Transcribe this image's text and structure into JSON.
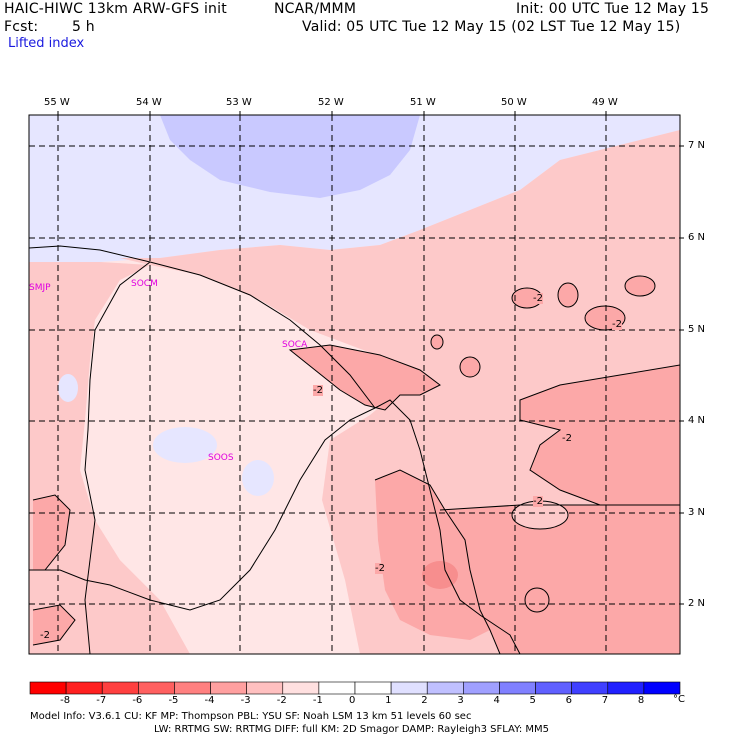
{
  "header": {
    "title": "HAIC-HIWC 13km ARW-GFS init",
    "org": "NCAR/MMM",
    "init": "Init: 00 UTC Tue 12 May 15",
    "fcst_label": "Fcst:",
    "fcst_value": "5 h",
    "valid": "Valid: 05 UTC Tue 12 May 15 (02 LST Tue 12 May 15)",
    "field": "Lifted index"
  },
  "axes": {
    "longitudes": [
      "55 W",
      "54 W",
      "53 W",
      "52 W",
      "51 W",
      "50 W",
      "49 W"
    ],
    "latitudes": [
      "7 N",
      "6 N",
      "5 N",
      "4 N",
      "3 N",
      "2 N"
    ]
  },
  "stations": [
    "SMJP",
    "SOCM",
    "SOCA",
    "SOOS"
  ],
  "contour_labels": [
    "-2",
    "-2",
    "-2",
    "-2",
    "-2",
    "-2",
    "-2"
  ],
  "colorbar": {
    "unit": "°C",
    "ticks": [
      "-8",
      "-7",
      "-6",
      "-5",
      "-4",
      "-3",
      "-2",
      "-1",
      "0",
      "1",
      "2",
      "3",
      "4",
      "5",
      "6",
      "7",
      "8"
    ],
    "colors": [
      "#ff0000",
      "#ff2020",
      "#ff4040",
      "#ff6060",
      "#ff8080",
      "#ffa0a0",
      "#ffc0c0",
      "#ffe0e0",
      "#ffffff",
      "#e0e0ff",
      "#c0c0ff",
      "#a0a0ff",
      "#8080ff",
      "#6060ff",
      "#4040ff",
      "#2020ff",
      "#0000ff"
    ]
  },
  "fills": {
    "lt_m2": "#fca8a8",
    "m2_m1": "#fdc9c9",
    "m1_0": "#ffe6e6",
    "p0_1": "#e6e6ff",
    "p1_2": "#c9c9ff",
    "dark_red": "#f78e8e"
  },
  "footer": {
    "line1": "Model Info: V3.6.1    CU: KF     MP: Thompson     PBL: YSU      SF: Noah LSM    13 km   51 levels   60 sec",
    "line2": "LW: RRTMG   SW: RRTMG  DIFF: full   KM: 2D Smagor DAMP: Rayleigh3  SFLAY: MM5"
  }
}
